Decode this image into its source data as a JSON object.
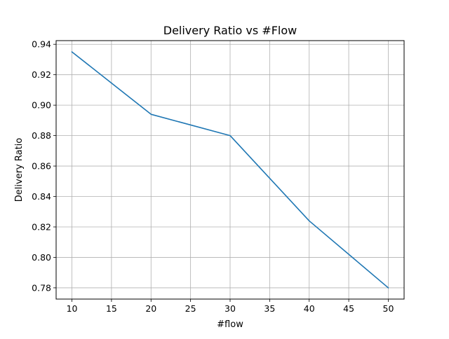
{
  "chart_data": {
    "type": "line",
    "title": "Delivery Ratio vs #Flow",
    "xlabel": "#flow",
    "ylabel": "Delivery Ratio",
    "xlim": [
      8,
      52
    ],
    "ylim": [
      0.7726,
      0.9424
    ],
    "x_ticks": [
      10,
      15,
      20,
      25,
      30,
      35,
      40,
      45,
      50
    ],
    "y_ticks": [
      0.78,
      0.8,
      0.82,
      0.84,
      0.86,
      0.88,
      0.9,
      0.92,
      0.94
    ],
    "x_tick_labels": [
      "10",
      "15",
      "20",
      "25",
      "30",
      "35",
      "40",
      "45",
      "50"
    ],
    "y_tick_labels": [
      "0.78",
      "0.80",
      "0.82",
      "0.84",
      "0.86",
      "0.88",
      "0.90",
      "0.92",
      "0.94"
    ],
    "grid": true,
    "series": [
      {
        "x": [
          10,
          20,
          30,
          40,
          50
        ],
        "values": [
          0.935,
          0.894,
          0.88,
          0.824,
          0.78
        ],
        "color": "#1f77b4"
      }
    ]
  }
}
